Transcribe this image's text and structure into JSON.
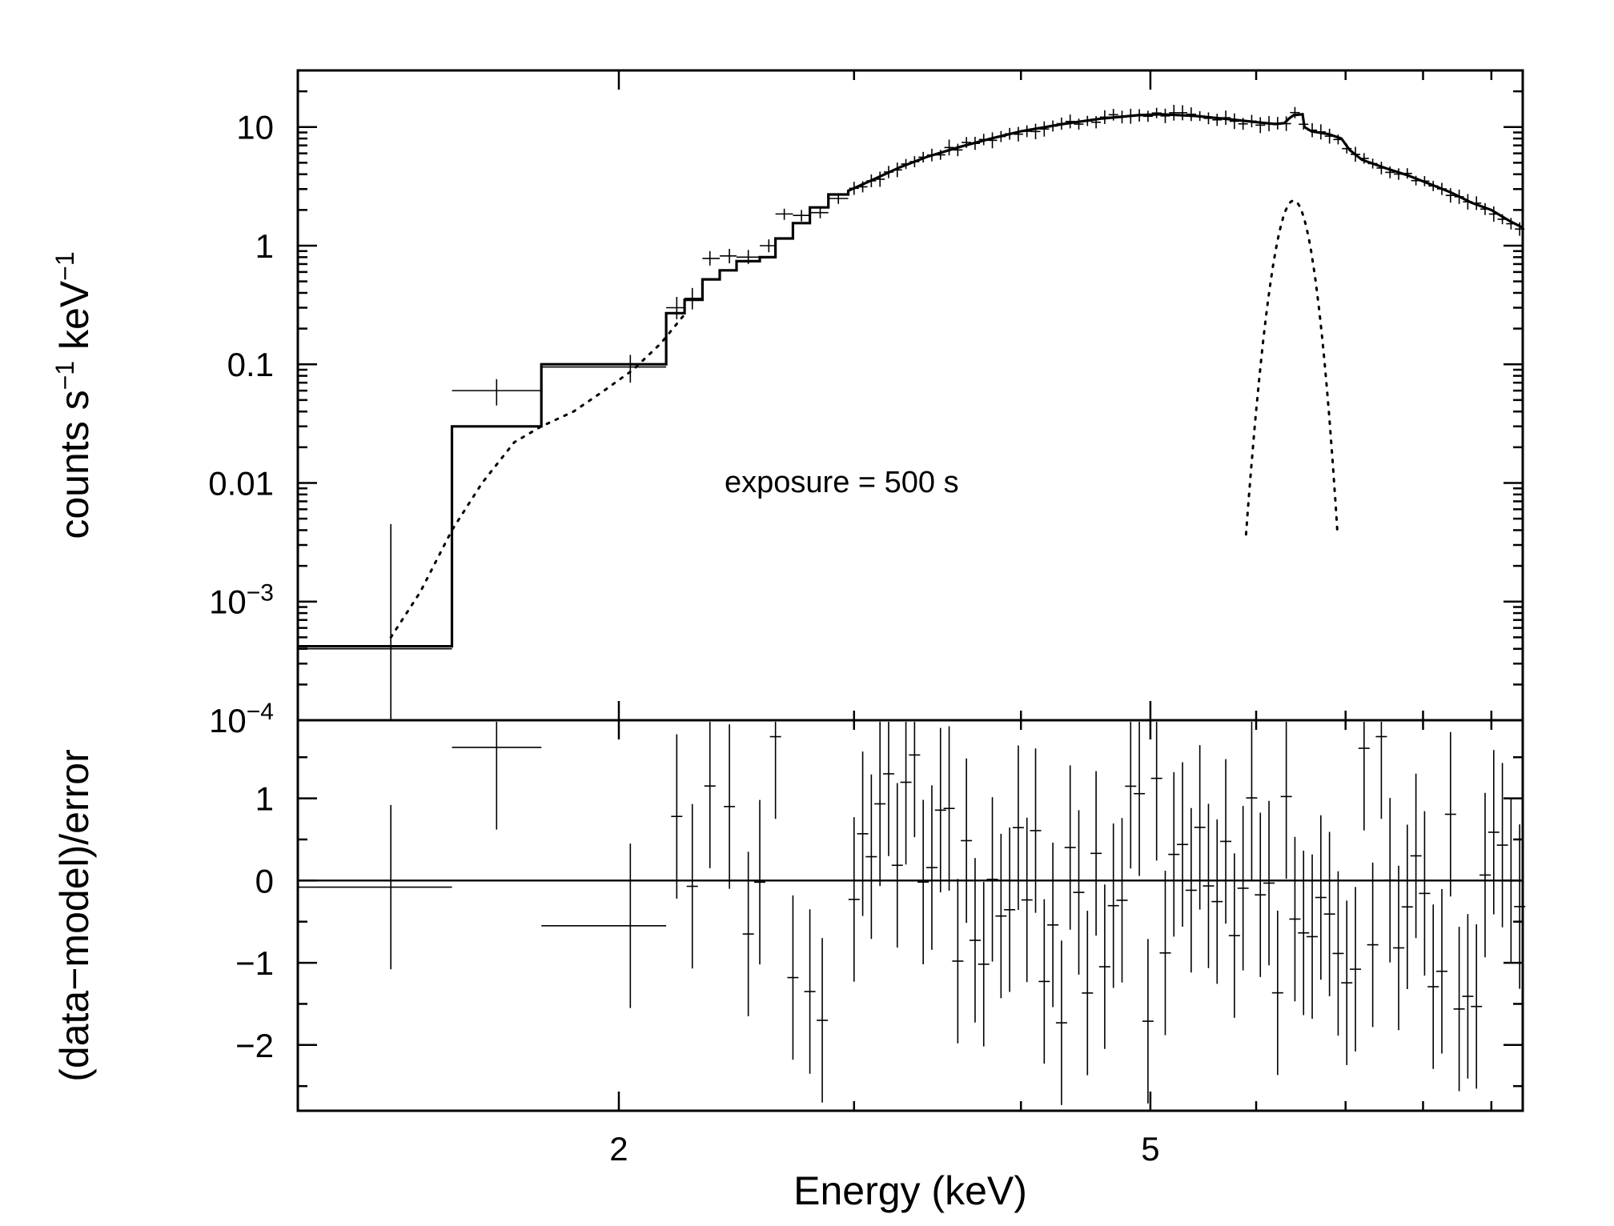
{
  "chart_data": [
    {
      "type": "line",
      "panel": "spectrum",
      "ylabel_main": "counts s",
      "ylabel_sup1": "−1",
      "ylabel_mid": " keV",
      "ylabel_sup2": "−1",
      "yscale": "log",
      "ylim": [
        0.0001,
        30
      ],
      "xlim": [
        1.15,
        9.5
      ],
      "yticks": [
        {
          "value": 10,
          "label": "10"
        },
        {
          "value": 1,
          "label": "1"
        },
        {
          "value": 0.1,
          "label": "0.1"
        },
        {
          "value": 0.01,
          "label": "0.01"
        },
        {
          "value": 0.001,
          "base": "10",
          "exp": "−3"
        },
        {
          "value": 0.0001,
          "base": "10",
          "exp": "−4"
        }
      ],
      "annotation": "exposure = 500 s",
      "model_steps": [
        {
          "x0": 1.15,
          "x1": 1.5,
          "y": 0.00042
        },
        {
          "x0": 1.5,
          "x1": 1.75,
          "y": 0.03
        },
        {
          "x0": 1.75,
          "x1": 2.17,
          "y": 0.1
        },
        {
          "x0": 2.17,
          "x1": 2.24,
          "y": 0.27
        },
        {
          "x0": 2.24,
          "x1": 2.31,
          "y": 0.35
        },
        {
          "x0": 2.31,
          "x1": 2.38,
          "y": 0.52
        },
        {
          "x0": 2.38,
          "x1": 2.45,
          "y": 0.62
        },
        {
          "x0": 2.45,
          "x1": 2.55,
          "y": 0.74
        },
        {
          "x0": 2.55,
          "x1": 2.62,
          "y": 0.8
        },
        {
          "x0": 2.62,
          "x1": 2.7,
          "y": 1.15
        },
        {
          "x0": 2.7,
          "x1": 2.78,
          "y": 1.55
        },
        {
          "x0": 2.78,
          "x1": 2.87,
          "y": 2.1
        },
        {
          "x0": 2.87,
          "x1": 2.97,
          "y": 2.7
        }
      ],
      "model_smooth": [
        [
          2.97,
          2.9
        ],
        [
          3.1,
          3.6
        ],
        [
          3.25,
          4.6
        ],
        [
          3.4,
          5.6
        ],
        [
          3.6,
          6.8
        ],
        [
          3.8,
          8.0
        ],
        [
          4.0,
          9.2
        ],
        [
          4.3,
          10.6
        ],
        [
          4.6,
          11.8
        ],
        [
          4.9,
          12.6
        ],
        [
          5.1,
          12.8
        ],
        [
          5.4,
          12.4
        ],
        [
          5.7,
          11.7
        ],
        [
          6.0,
          11.0
        ],
        [
          6.2,
          10.6
        ],
        [
          6.3,
          10.8
        ],
        [
          6.35,
          11.8
        ],
        [
          6.4,
          12.6
        ],
        [
          6.5,
          12.8
        ],
        [
          6.52,
          10.0
        ],
        [
          6.6,
          9.2
        ],
        [
          6.8,
          8.7
        ],
        [
          6.95,
          8.0
        ],
        [
          7.05,
          6.4
        ],
        [
          7.2,
          5.3
        ],
        [
          7.5,
          4.5
        ],
        [
          7.8,
          3.9
        ],
        [
          8.1,
          3.3
        ],
        [
          8.4,
          2.8
        ],
        [
          8.7,
          2.3
        ],
        [
          9.0,
          2.0
        ],
        [
          9.3,
          1.6
        ],
        [
          9.5,
          1.42
        ]
      ],
      "continuum_dotted": [
        [
          1.35,
          0.0005
        ],
        [
          1.42,
          0.0012
        ],
        [
          1.5,
          0.004
        ],
        [
          1.58,
          0.01
        ],
        [
          1.67,
          0.022
        ],
        [
          1.75,
          0.03
        ],
        [
          1.85,
          0.04
        ],
        [
          1.95,
          0.06
        ],
        [
          2.05,
          0.09
        ],
        [
          2.15,
          0.15
        ],
        [
          2.25,
          0.28
        ]
      ],
      "line_gaussian": {
        "center": 6.4,
        "peak": 2.4,
        "sigma": 0.14
      },
      "data_points": [
        {
          "x": 1.35,
          "xlo": 1.15,
          "xhi": 1.5,
          "y": 0.0004,
          "ylo": 0.0001,
          "yhi": 0.0045
        },
        {
          "x": 1.62,
          "xlo": 1.5,
          "xhi": 1.75,
          "y": 0.06,
          "ylo": 0.045,
          "yhi": 0.075
        },
        {
          "x": 2.04,
          "xlo": 1.75,
          "xhi": 2.17,
          "y": 0.095,
          "ylo": 0.07,
          "yhi": 0.12
        },
        {
          "x": 2.21,
          "xlo": 2.17,
          "xhi": 2.24,
          "y": 0.3,
          "ylo": 0.24,
          "yhi": 0.37
        },
        {
          "x": 2.27,
          "xlo": 2.24,
          "xhi": 2.31,
          "y": 0.36,
          "ylo": 0.29,
          "yhi": 0.44
        },
        {
          "x": 2.34,
          "xlo": 2.31,
          "xhi": 2.38,
          "y": 0.78,
          "ylo": 0.68,
          "yhi": 0.9
        },
        {
          "x": 2.42,
          "xlo": 2.38,
          "xhi": 2.45,
          "y": 0.82,
          "ylo": 0.71,
          "yhi": 0.94
        },
        {
          "x": 2.5,
          "xlo": 2.45,
          "xhi": 2.55,
          "y": 0.8,
          "ylo": 0.7,
          "yhi": 0.92
        },
        {
          "x": 2.59,
          "xlo": 2.55,
          "xhi": 2.62,
          "y": 1.0,
          "ylo": 0.88,
          "yhi": 1.13
        },
        {
          "x": 2.66,
          "xlo": 2.62,
          "xhi": 2.7,
          "y": 1.85,
          "ylo": 1.65,
          "yhi": 2.05
        },
        {
          "x": 2.74,
          "xlo": 2.7,
          "xhi": 2.78,
          "y": 1.8,
          "ylo": 1.6,
          "yhi": 2.0
        },
        {
          "x": 2.83,
          "xlo": 2.78,
          "xhi": 2.87,
          "y": 1.9,
          "ylo": 1.7,
          "yhi": 2.1
        },
        {
          "x": 2.92,
          "xlo": 2.87,
          "xhi": 2.97,
          "y": 2.5,
          "ylo": 2.25,
          "yhi": 2.75
        }
      ],
      "dense_points": {
        "x_start": 3.0,
        "x_end": 9.45,
        "count": 78
      }
    },
    {
      "type": "scatter",
      "panel": "residuals",
      "ylabel": "(data−model)/error",
      "xlabel": "Energy (keV)",
      "xscale": "log",
      "xlim": [
        1.15,
        9.5
      ],
      "ylim": [
        -2.8,
        1.95
      ],
      "xticks": [
        {
          "value": 2,
          "label": "2"
        },
        {
          "value": 5,
          "label": "5"
        }
      ],
      "xminor": [
        3,
        4,
        6,
        7,
        8,
        9
      ],
      "yticks": [
        {
          "value": 1,
          "label": "1"
        },
        {
          "value": 0,
          "label": "0"
        },
        {
          "value": -1,
          "label": "−1"
        },
        {
          "value": -2,
          "label": "−2"
        }
      ],
      "residuals": [
        {
          "x": 1.35,
          "xlo": 1.15,
          "xhi": 1.5,
          "y": -0.08,
          "err": 1.0
        },
        {
          "x": 1.62,
          "xlo": 1.5,
          "xhi": 1.75,
          "y": 1.62,
          "err": 1.0
        },
        {
          "x": 2.04,
          "xlo": 1.75,
          "xhi": 2.17,
          "y": -0.55,
          "err": 1.0
        },
        {
          "x": 2.21,
          "y": 0.78,
          "err": 1.0
        },
        {
          "x": 2.27,
          "y": -0.07,
          "err": 1.0
        },
        {
          "x": 2.34,
          "y": 1.15,
          "err": 1.0
        },
        {
          "x": 2.42,
          "y": 0.9,
          "err": 1.0
        },
        {
          "x": 2.5,
          "y": -0.65,
          "err": 1.0
        },
        {
          "x": 2.55,
          "y": -0.02,
          "err": 1.0
        },
        {
          "x": 2.62,
          "y": 1.75,
          "err": 1.0
        },
        {
          "x": 2.7,
          "y": -1.18,
          "err": 1.0
        },
        {
          "x": 2.78,
          "y": -1.35,
          "err": 1.0
        },
        {
          "x": 2.84,
          "y": -1.7,
          "err": 1.0
        }
      ],
      "dense_residual_seed": 7
    }
  ]
}
